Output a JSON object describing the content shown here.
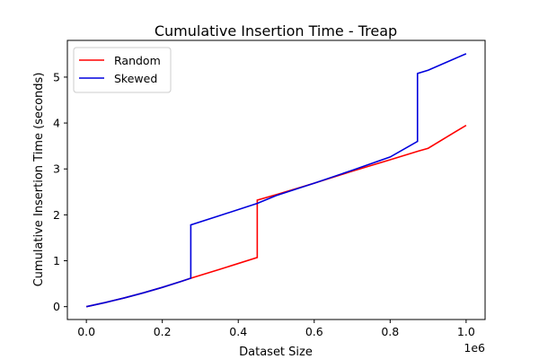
{
  "chart_data": {
    "type": "line",
    "title": "Cumulative Insertion Time - Treap",
    "xlabel": "Dataset Size",
    "ylabel": "Cumulative Insertion Time (seconds)",
    "x_offset_text": "1e6",
    "x_tick_labels": [
      "0.0",
      "0.2",
      "0.4",
      "0.6",
      "0.8",
      "1.0"
    ],
    "x_ticks": [
      0,
      200000,
      400000,
      600000,
      800000,
      1000000
    ],
    "y_tick_labels": [
      "0",
      "1",
      "2",
      "3",
      "4",
      "5"
    ],
    "y_ticks": [
      0,
      1,
      2,
      3,
      4,
      5
    ],
    "xlim": [
      -50000,
      1050000
    ],
    "ylim": [
      -0.28,
      5.8
    ],
    "grid": false,
    "legend_position": "top-left",
    "series": [
      {
        "name": "Random",
        "color": "#ff0000",
        "x": [
          0,
          50000,
          100000,
          150000,
          200000,
          250000,
          275000,
          350000,
          450000,
          450001,
          500000,
          600000,
          700000,
          800000,
          875000,
          900000,
          1000000
        ],
        "y": [
          0,
          0.09,
          0.19,
          0.3,
          0.42,
          0.55,
          0.62,
          0.81,
          1.07,
          2.32,
          2.44,
          2.69,
          2.95,
          3.2,
          3.39,
          3.45,
          3.95
        ]
      },
      {
        "name": "Skewed",
        "color": "#0000dd",
        "x": [
          0,
          50000,
          100000,
          150000,
          200000,
          250000,
          275000,
          275001,
          350000,
          450000,
          500000,
          600000,
          700000,
          800000,
          872000,
          872001,
          900000,
          1000000
        ],
        "y": [
          0,
          0.09,
          0.19,
          0.3,
          0.42,
          0.55,
          0.62,
          1.78,
          1.98,
          2.25,
          2.42,
          2.69,
          2.97,
          3.26,
          3.6,
          5.08,
          5.15,
          5.51
        ]
      }
    ]
  }
}
